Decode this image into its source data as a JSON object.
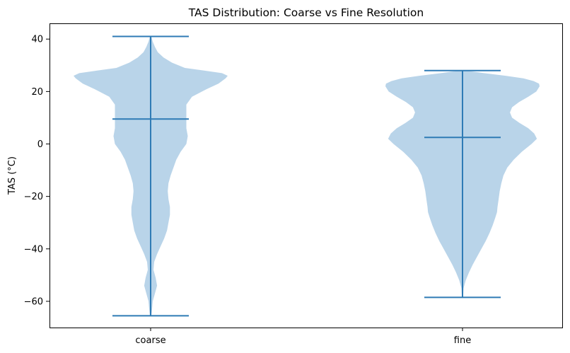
{
  "chart_data": {
    "type": "violin",
    "title": "TAS Distribution: Coarse vs Fine Resolution",
    "xlabel": "",
    "ylabel": "TAS (°C)",
    "categories": [
      "coarse",
      "fine"
    ],
    "ylim": [
      -70,
      46
    ],
    "yticks": [
      40,
      20,
      0,
      -20,
      -40,
      -60
    ],
    "ytick_labels": [
      "40",
      "20",
      "0",
      "−20",
      "−40",
      "−60"
    ],
    "grid": false,
    "colors": {
      "body": "#b9d4e9",
      "lines": "#2f7bb5"
    },
    "series": [
      {
        "category": "coarse",
        "min": -65.5,
        "max": 41,
        "median": 9.5,
        "density": [
          [
            -65.5,
            0.01
          ],
          [
            -63,
            0.02
          ],
          [
            -60,
            0.03
          ],
          [
            -57,
            0.06
          ],
          [
            -54,
            0.09
          ],
          [
            -51,
            0.07
          ],
          [
            -48,
            0.04
          ],
          [
            -45,
            0.05
          ],
          [
            -42,
            0.09
          ],
          [
            -39,
            0.14
          ],
          [
            -36,
            0.19
          ],
          [
            -33,
            0.23
          ],
          [
            -30,
            0.25
          ],
          [
            -27,
            0.27
          ],
          [
            -24,
            0.27
          ],
          [
            -21,
            0.25
          ],
          [
            -18,
            0.24
          ],
          [
            -15,
            0.25
          ],
          [
            -12,
            0.28
          ],
          [
            -9,
            0.32
          ],
          [
            -6,
            0.36
          ],
          [
            -3,
            0.42
          ],
          [
            0,
            0.5
          ],
          [
            3,
            0.52
          ],
          [
            6,
            0.5
          ],
          [
            9,
            0.5
          ],
          [
            12,
            0.5
          ],
          [
            15,
            0.5
          ],
          [
            18,
            0.58
          ],
          [
            21,
            0.79
          ],
          [
            23,
            0.95
          ],
          [
            25,
            1.05
          ],
          [
            26,
            1.08
          ],
          [
            27,
            1.0
          ],
          [
            28,
            0.75
          ],
          [
            29,
            0.48
          ],
          [
            31,
            0.3
          ],
          [
            33,
            0.18
          ],
          [
            35,
            0.1
          ],
          [
            37,
            0.06
          ],
          [
            39,
            0.03
          ],
          [
            41,
            0.01
          ]
        ]
      },
      {
        "category": "fine",
        "min": -58.5,
        "max": 28,
        "median": 2.5,
        "density": [
          [
            -58.5,
            0.01
          ],
          [
            -55,
            0.02
          ],
          [
            -52,
            0.06
          ],
          [
            -49,
            0.12
          ],
          [
            -46,
            0.19
          ],
          [
            -43,
            0.27
          ],
          [
            -40,
            0.35
          ],
          [
            -37,
            0.43
          ],
          [
            -34,
            0.5
          ],
          [
            -31,
            0.56
          ],
          [
            -28,
            0.61
          ],
          [
            -26,
            0.64
          ],
          [
            -24,
            0.65
          ],
          [
            -21,
            0.67
          ],
          [
            -18,
            0.69
          ],
          [
            -15,
            0.72
          ],
          [
            -12,
            0.76
          ],
          [
            -9,
            0.83
          ],
          [
            -6,
            0.95
          ],
          [
            -3,
            1.1
          ],
          [
            0,
            1.28
          ],
          [
            2,
            1.38
          ],
          [
            4,
            1.33
          ],
          [
            6,
            1.22
          ],
          [
            8,
            1.06
          ],
          [
            10,
            0.92
          ],
          [
            12,
            0.88
          ],
          [
            14,
            0.92
          ],
          [
            16,
            1.05
          ],
          [
            18,
            1.22
          ],
          [
            20,
            1.37
          ],
          [
            22,
            1.43
          ],
          [
            23,
            1.42
          ],
          [
            24,
            1.32
          ],
          [
            25,
            1.13
          ],
          [
            26,
            0.8
          ],
          [
            27,
            0.4
          ],
          [
            28,
            0.05
          ]
        ]
      }
    ]
  }
}
